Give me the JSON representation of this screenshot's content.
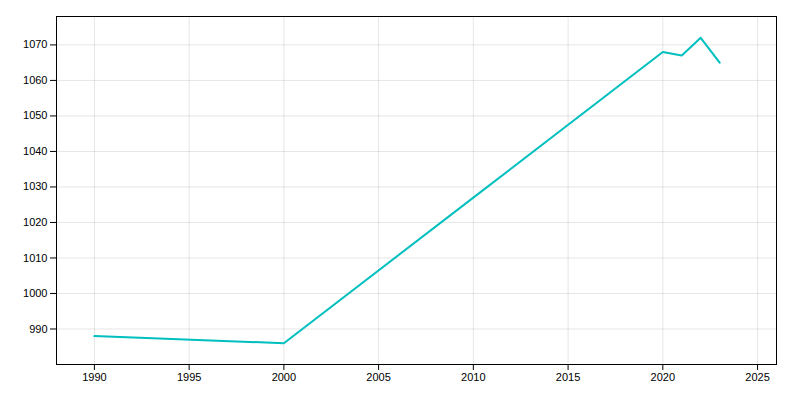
{
  "chart_data": {
    "type": "line",
    "x": [
      1990,
      2000,
      2010,
      2020,
      2021,
      2022,
      2023
    ],
    "values": [
      988,
      986,
      1027,
      1068,
      1067,
      1072,
      1065
    ],
    "color": "#00BFBF",
    "xlim": [
      1988,
      2026
    ],
    "ylim": [
      980,
      1078
    ],
    "xticks": [
      1990,
      1995,
      2000,
      2005,
      2010,
      2015,
      2020,
      2025
    ],
    "yticks": [
      990,
      1000,
      1010,
      1020,
      1030,
      1040,
      1050,
      1060,
      1070
    ],
    "grid": true
  }
}
